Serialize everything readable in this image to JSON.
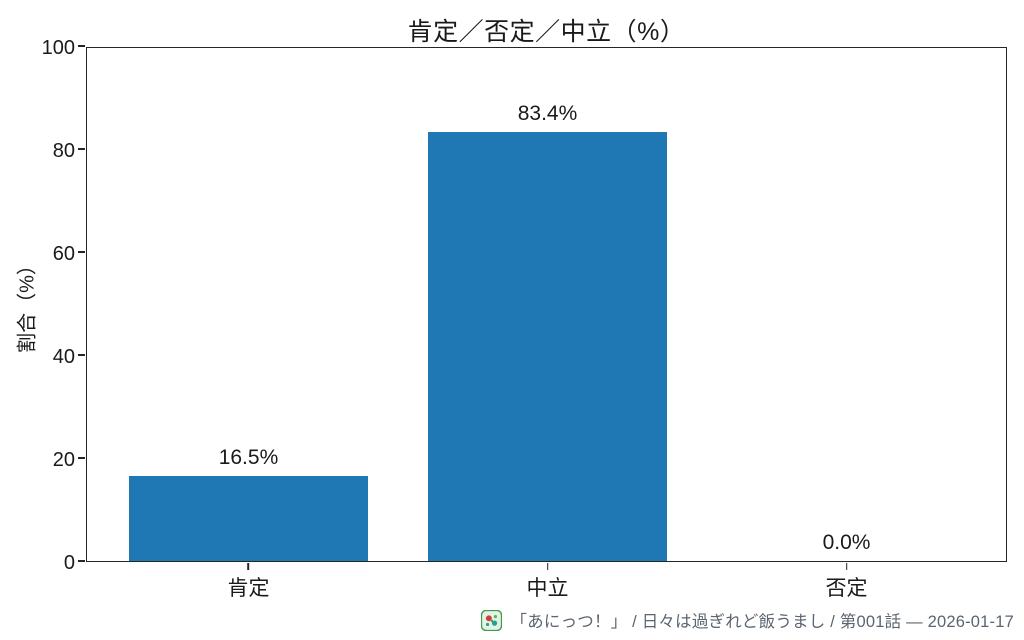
{
  "chart_data": {
    "type": "bar",
    "title": "肯定／否定／中立（%）",
    "xlabel": "",
    "ylabel": "割合（%）",
    "categories": [
      "肯定",
      "中立",
      "否定"
    ],
    "values": [
      16.5,
      83.4,
      0.0
    ],
    "value_labels": [
      "16.5%",
      "83.4%",
      "0.0%"
    ],
    "yticks": [
      0,
      20,
      40,
      60,
      80,
      100
    ],
    "ylim": [
      0,
      100
    ],
    "bar_color": "#1f77b4",
    "grid": false,
    "legend_position": "none",
    "spine_box": true
  },
  "caption": {
    "icon": "site-favicon",
    "text": "「あにっつ！」 / 日々は過ぎれど飯うまし / 第001話 — 2026-01-17",
    "color": "#5b6570"
  }
}
